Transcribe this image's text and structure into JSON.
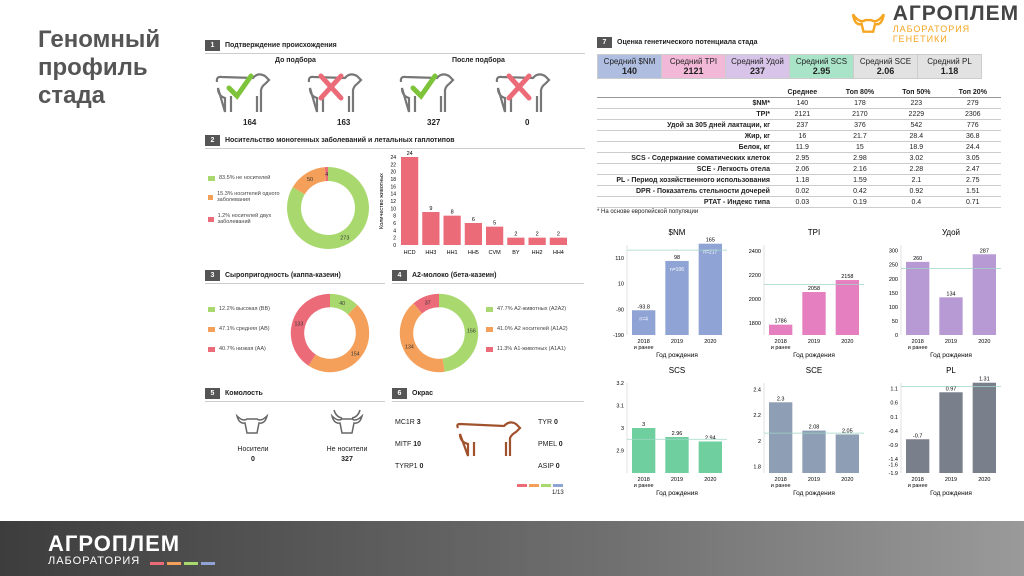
{
  "title": "Геномный профиль стада",
  "logo": {
    "main": "АГРОПЛЕМ",
    "sub": "ЛАБОРАТОРИЯ ГЕНЕТИКИ"
  },
  "footer": {
    "main": "АГРОПЛЕМ",
    "sub": "ЛАБОРАТОРИЯ"
  },
  "s1": {
    "num": "1",
    "title": "Подтверждение происхождения",
    "before": "До подбора",
    "after": "После подбора",
    "values": [
      "164",
      "163",
      "327",
      "0"
    ]
  },
  "s2": {
    "num": "2",
    "title": "Носительство моногенных заболеваний и летальных гаплотипов",
    "legend": [
      "83.5% не носителей",
      "15.3% носителей одного заболевания",
      "1.2% носителей двух заболеваний"
    ],
    "donut": [
      273,
      50,
      4
    ],
    "ylabel": "Количество животных",
    "bars": {
      "categories": [
        "HCD",
        "HH3",
        "HH1",
        "HH5",
        "CVM",
        "BY",
        "HH2",
        "HH4"
      ],
      "values": [
        24,
        9,
        8,
        6,
        5,
        2,
        2,
        2
      ]
    }
  },
  "s3": {
    "num": "3",
    "title": "Сыропригодность (каппа-казеин)",
    "legend": [
      "12.2% высокая (ВВ)",
      "47.1% средняя (АВ)",
      "40.7% низкая (АА)"
    ],
    "donut": [
      40,
      154,
      133
    ]
  },
  "s4": {
    "num": "4",
    "title": "А2-молоко (бета-казеин)",
    "legend": [
      "47.7% А2-животных (А2А2)",
      "41.0% А2 носителей (А1А2)",
      "11.3% А1-животных (А1А1)"
    ],
    "donut": [
      156,
      134,
      37
    ]
  },
  "s5": {
    "num": "5",
    "title": "Комолость",
    "carriers": "Носители",
    "carriers_val": "0",
    "non": "Не носители",
    "non_val": "327"
  },
  "s6": {
    "num": "6",
    "title": "Окрас",
    "left": [
      [
        "MC1R",
        "3"
      ],
      [
        "MITF",
        "10"
      ],
      [
        "TYRP1",
        "0"
      ]
    ],
    "right": [
      [
        "TYR",
        "0"
      ],
      [
        "PMEL",
        "0"
      ],
      [
        "ASIP",
        "0"
      ]
    ],
    "page": "1/13"
  },
  "s7": {
    "num": "7",
    "title": "Оценка генетического потенциала стада",
    "kpi": [
      {
        "label": "Средний $NM",
        "value": "140",
        "color": "#aebde0"
      },
      {
        "label": "Средний TPI",
        "value": "2121",
        "color": "#f2b8d8"
      },
      {
        "label": "Средний Удой",
        "value": "237",
        "color": "#d8c4e8"
      },
      {
        "label": "Средний SCS",
        "value": "2.95",
        "color": "#a9e3c8"
      },
      {
        "label": "Средний SCE",
        "value": "2.06",
        "color": "#e2e2e2"
      },
      {
        "label": "Средний PL",
        "value": "1.18",
        "color": "#e2e2e2"
      }
    ],
    "table": {
      "headers": [
        "",
        "Среднее",
        "Топ 80%",
        "Топ 50%",
        "Топ 20%"
      ],
      "rows": [
        [
          "$NM*",
          "140",
          "178",
          "223",
          "279"
        ],
        [
          "TPI*",
          "2121",
          "2170",
          "2229",
          "2306"
        ],
        [
          "Удой за 305 дней лактации, кг",
          "237",
          "376",
          "542",
          "776"
        ],
        [
          "Жир, кг",
          "16",
          "21.7",
          "28.4",
          "36.8"
        ],
        [
          "Белок, кг",
          "11.9",
          "15",
          "18.9",
          "24.4"
        ],
        [
          "SCS - Содержание соматических клеток",
          "2.95",
          "2.98",
          "3.02",
          "3.05"
        ],
        [
          "SCE - Легкость отела",
          "2.06",
          "2.16",
          "2.28",
          "2.47"
        ],
        [
          "PL - Период хозяйственного использования",
          "1.18",
          "1.59",
          "2.1",
          "2.75"
        ],
        [
          "DPR - Показатель стельности дочерей",
          "0.02",
          "0.42",
          "0.92",
          "1.51"
        ],
        [
          "PTAT - Индекс типа",
          "0.03",
          "0.19",
          "0.4",
          "0.71"
        ]
      ],
      "note": "* На основе европейской популяции"
    }
  },
  "chart_data": [
    {
      "type": "bar",
      "title": "$NM",
      "categories": [
        "2018 и ранее",
        "2019",
        "2020"
      ],
      "values": [
        -93.8,
        98,
        165
      ],
      "bar_labels": [
        "n=4",
        "n=106",
        "n=217"
      ],
      "ylim": [
        -190,
        160
      ],
      "yticks": [
        -190,
        -90,
        10,
        110
      ],
      "color": "#8fa3d4",
      "avg": 140,
      "xlabel": "Год рождения"
    },
    {
      "type": "bar",
      "title": "TPI",
      "categories": [
        "2018 и ранее",
        "2019",
        "2020"
      ],
      "values": [
        1786,
        2058,
        2158
      ],
      "ylim": [
        1700,
        2450
      ],
      "yticks": [
        1800,
        2000,
        2200,
        2400
      ],
      "color": "#e57fbf",
      "avg": 2121,
      "xlabel": "Год рождения"
    },
    {
      "type": "bar",
      "title": "Удой",
      "categories": [
        "2018 и ранее",
        "2019",
        "2020"
      ],
      "values": [
        260,
        134,
        287
      ],
      "ylim": [
        0,
        320
      ],
      "yticks": [
        0,
        50,
        100,
        150,
        200,
        250,
        300
      ],
      "color": "#b79ad4",
      "avg": 237,
      "xlabel": "Год рождения"
    },
    {
      "type": "bar",
      "title": "SCS",
      "categories": [
        "2018 и ранее",
        "2019",
        "2020"
      ],
      "values": [
        3,
        2.96,
        2.94
      ],
      "ylim": [
        2.8,
        3.2
      ],
      "yticks": [
        2.9,
        3.0,
        3.1,
        3.2
      ],
      "color": "#6fcf9f",
      "avg": 2.95,
      "xlabel": "Год рождения"
    },
    {
      "type": "bar",
      "title": "SCE",
      "categories": [
        "2018 и ранее",
        "2019",
        "2020"
      ],
      "values": [
        2.3,
        2.08,
        2.05
      ],
      "ylim": [
        1.75,
        2.45
      ],
      "yticks": [
        1.8,
        2.0,
        2.2,
        2.4
      ],
      "color": "#8e9fb5",
      "avg": 2.06,
      "xlabel": "Год рождения"
    },
    {
      "type": "bar",
      "title": "PL",
      "categories": [
        "2018 и ранее",
        "2019",
        "2020"
      ],
      "values": [
        -0.7,
        0.97,
        1.31
      ],
      "ylim": [
        -1.9,
        1.3
      ],
      "yticks": [
        -1.9,
        -1.6,
        -1.4,
        -0.9,
        -0.4,
        0.1,
        0.6,
        1.1
      ],
      "color": "#7a7f8c",
      "avg": 1.18,
      "xlabel": "Год рождения"
    }
  ]
}
